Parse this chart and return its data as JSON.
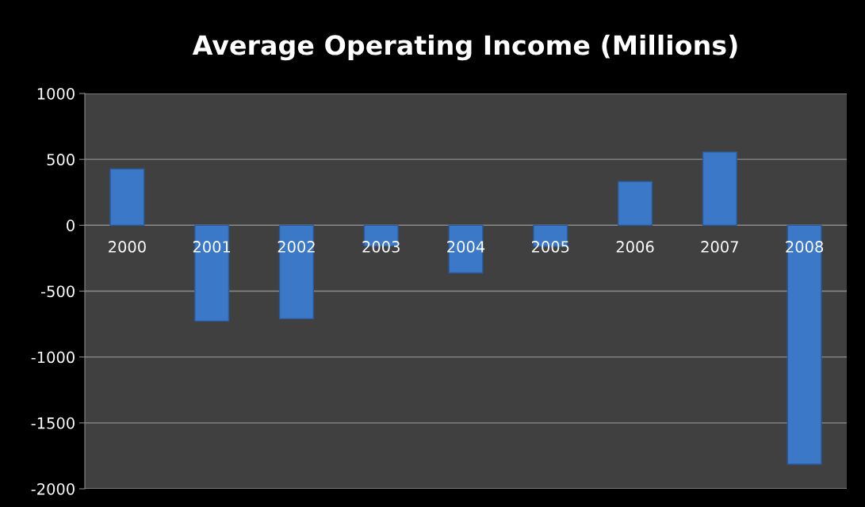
{
  "chart_data": {
    "type": "bar",
    "title": "Average Operating Income (Millions)",
    "categories": [
      "2000",
      "2001",
      "2002",
      "2003",
      "2004",
      "2005",
      "2006",
      "2007",
      "2008"
    ],
    "values": [
      428,
      -728,
      -710,
      -158,
      -362,
      -160,
      332,
      556,
      -1814
    ],
    "color": "#3b78c8",
    "ylim": [
      -2000,
      1000
    ],
    "yticks": [
      -2000,
      -1500,
      -1000,
      -500,
      0,
      500,
      1000
    ],
    "grid": "y"
  }
}
